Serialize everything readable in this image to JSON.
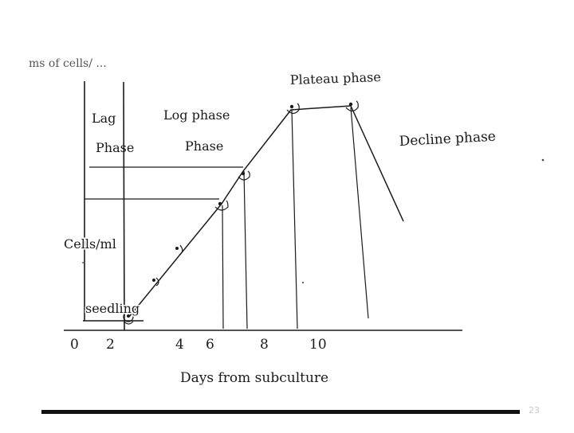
{
  "figure": {
    "header_fragment": "ms of cells/ ... ",
    "y_label": "Cells/ml",
    "x_label": "Days from subculture",
    "seedling_label": "seedling",
    "x_ticks": [
      "0",
      "2",
      "4",
      "6",
      "8",
      "10"
    ],
    "phases": {
      "lag_line1": "Lag",
      "lag_line2": "Phase",
      "log_line1": "Log phase",
      "log_line2": "Phase",
      "plateau": "Plateau phase",
      "decline": "Decline phase"
    }
  },
  "slide": {
    "page_number": "23"
  }
}
